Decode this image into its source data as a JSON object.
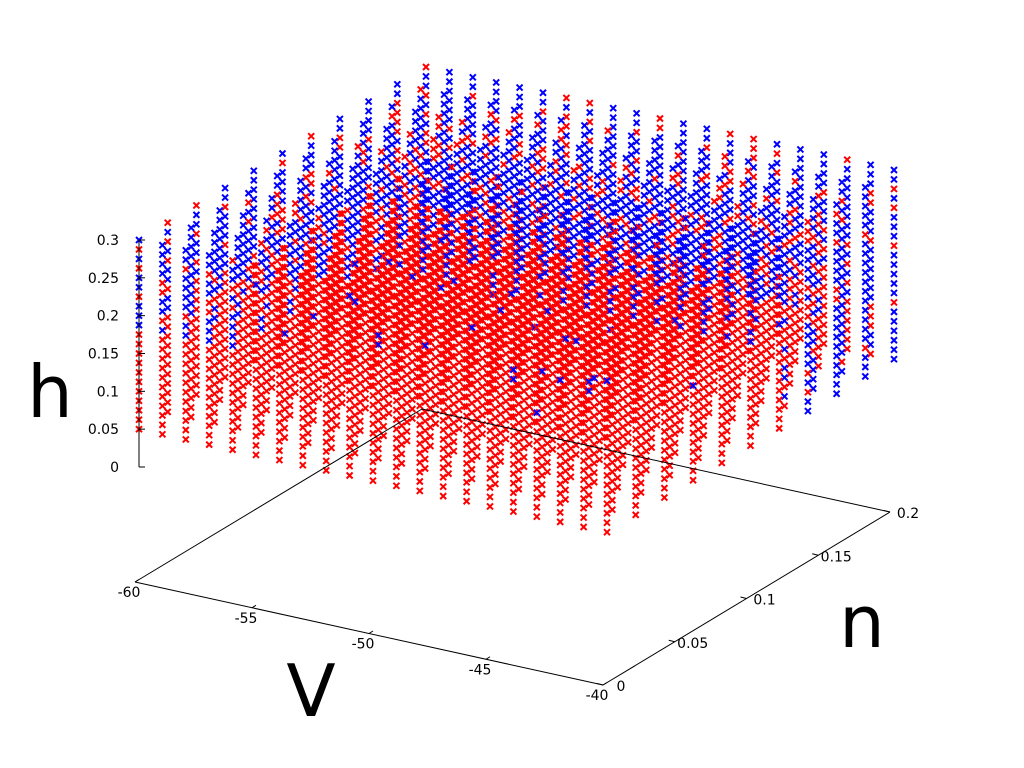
{
  "chart_data": {
    "type": "scatter",
    "dimensions": 3,
    "title": "",
    "xlabel": "V",
    "ylabel": "n",
    "zlabel": "h",
    "xlim": [
      -60,
      -40
    ],
    "ylim": [
      0,
      0.2
    ],
    "zlim": [
      0,
      0.3
    ],
    "x_ticks": [
      {
        "value": -60,
        "label": "-60"
      },
      {
        "value": -55,
        "label": "-55"
      },
      {
        "value": -50,
        "label": "-50"
      },
      {
        "value": -45,
        "label": "-45"
      },
      {
        "value": -40,
        "label": "-40"
      }
    ],
    "y_ticks": [
      {
        "value": 0,
        "label": "0"
      },
      {
        "value": 0.05,
        "label": "0.05"
      },
      {
        "value": 0.1,
        "label": "0.1"
      },
      {
        "value": 0.15,
        "label": "0.15"
      },
      {
        "value": 0.2,
        "label": "0.2"
      }
    ],
    "z_ticks": [
      {
        "value": 0,
        "label": "0"
      },
      {
        "value": 0.05,
        "label": "0.05"
      },
      {
        "value": 0.1,
        "label": "0.1"
      },
      {
        "value": 0.15,
        "label": "0.15"
      },
      {
        "value": 0.2,
        "label": "0.2"
      },
      {
        "value": 0.25,
        "label": "0.25"
      },
      {
        "value": 0.3,
        "label": "0.3"
      }
    ],
    "grid": false,
    "legend": "none",
    "marker": "x",
    "grid_sampling": {
      "V": [
        -60,
        -40,
        1
      ],
      "n": [
        0,
        0.2,
        0.02
      ],
      "h": [
        0.05,
        0.3,
        0.0125
      ]
    },
    "series": [
      {
        "color": "#ff0000",
        "region": "interior"
      },
      {
        "color": "#0000ff",
        "region": "outer"
      }
    ]
  }
}
